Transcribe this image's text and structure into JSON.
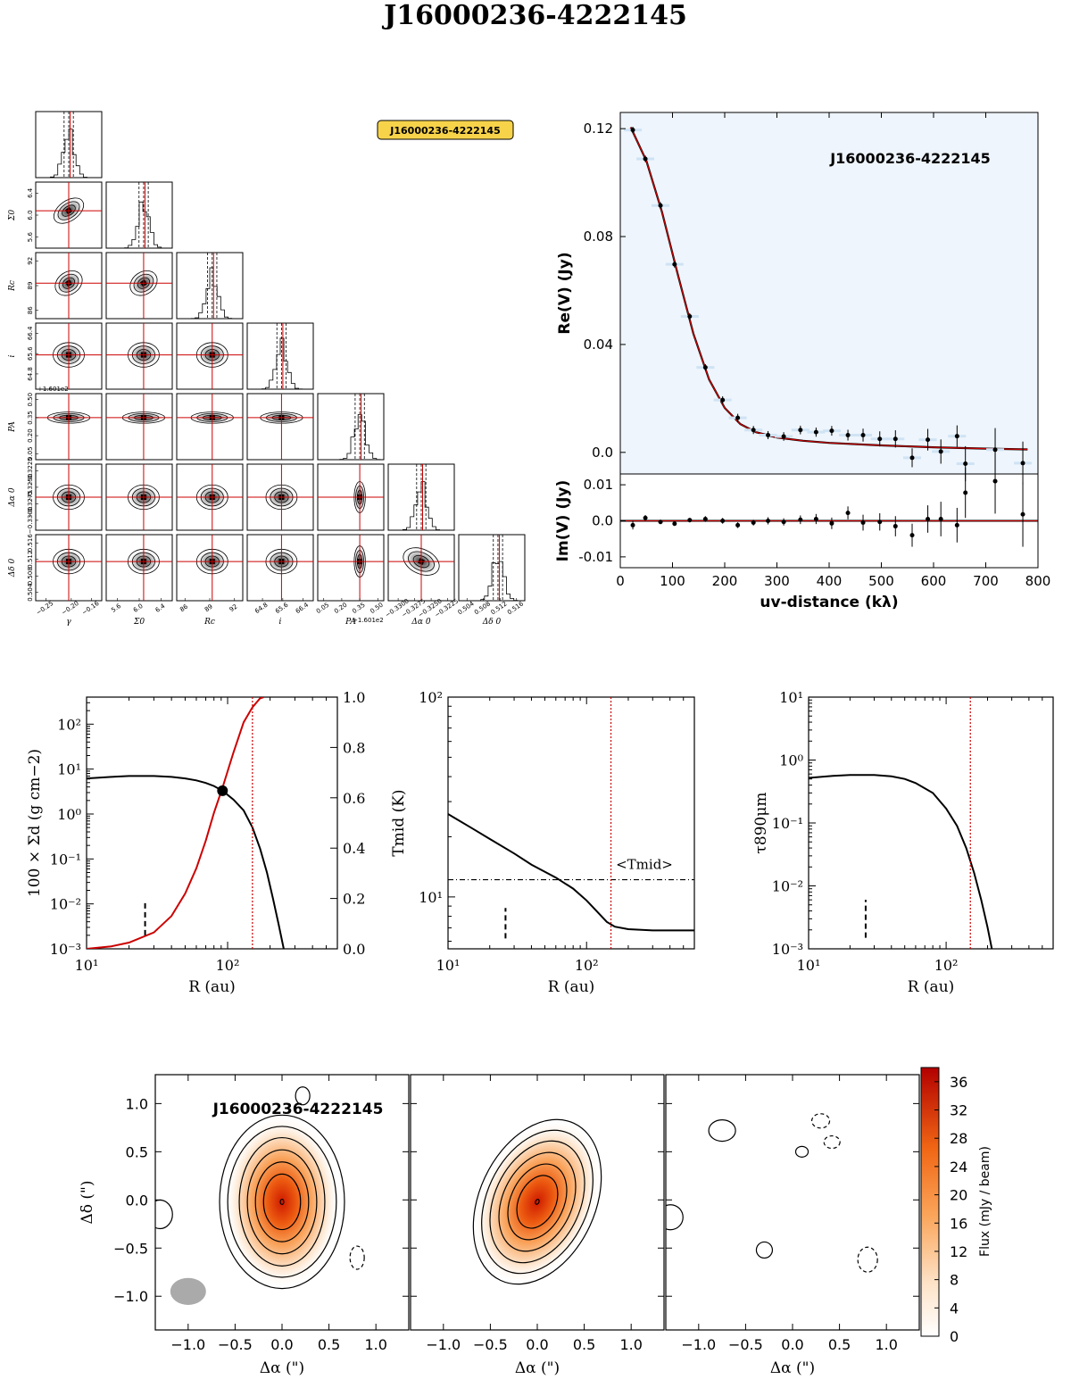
{
  "title": "J16000236-4222145",
  "colors": {
    "model_red": "#cc0000",
    "uv_bg": "#eef5fc",
    "badge_fill": "#f7d34a",
    "beam": "#aaaaaa",
    "cmap_low": "#ffffff",
    "cmap_high": "#b30000"
  },
  "chart_data": [
    {
      "type": "corner",
      "badge": "J16000236-4222145",
      "parameters": [
        "γ",
        "Σ0",
        "Rc",
        "i",
        "PA",
        "Δα 0",
        "Δδ 0"
      ],
      "ylabels": [
        "Σ0",
        "Rc",
        "i",
        "PA",
        "Δα 0",
        "Δδ 0"
      ],
      "xlabels": [
        "γ",
        "Σ0",
        "Rc",
        "i",
        "PA",
        "Δα 0",
        "Δδ 0"
      ],
      "offsets": {
        "i": "+1.601e2",
        "PA": "+1.601e2"
      },
      "ticks": {
        "γ": [
          "−0.25",
          "−0.20",
          "−0.16"
        ],
        "Σ0": [
          "5.6",
          "6.0",
          "6.4"
        ],
        "Rc": [
          "86",
          "89",
          "92"
        ],
        "i": [
          "64.8",
          "65.6",
          "66.4"
        ],
        "PA": [
          "0.05",
          "0.20",
          "0.35",
          "0.50"
        ],
        "Δα 0": [
          "−0.3300",
          "−0.3275",
          "−0.3250",
          "−0.3225"
        ],
        "Δδ 0": [
          "0.504",
          "0.508",
          "0.512",
          "0.516"
        ]
      },
      "ytick_labels": {
        "Σ0": [
          "5.6",
          "6.0",
          "6.4"
        ],
        "Rc": [
          "86",
          "89",
          "92"
        ],
        "i": [
          "64.8",
          "65.6",
          "66.4"
        ],
        "PA": [
          "0.05",
          "0.20",
          "0.35",
          "0.50"
        ],
        "Δα 0": [
          "−0.3300",
          "−0.3275",
          "−0.3250",
          "−0.3225"
        ],
        "Δδ 0": [
          "0.504",
          "0.508",
          "0.512",
          "0.516"
        ]
      },
      "xtick_labels": {
        "γ": [
          "−0.25",
          "−0.20",
          "−0.16"
        ],
        "Σ0": [
          "5.6",
          "6.0",
          "6.4"
        ],
        "Rc": [
          "86",
          "89",
          "92"
        ],
        "i": [
          "64.8",
          "65.6",
          "66.4"
        ],
        "PA": [
          "0.05",
          "0.20",
          "0.35",
          "0.50"
        ],
        "Δα 0": [
          "−0.3300",
          "−0.3275",
          "−0.3250",
          "−0.3225"
        ],
        "Δδ 0": [
          "0.504",
          "0.508",
          "0.512",
          "0.516"
        ]
      },
      "tick_values": {
        "γ": [
          -0.25,
          -0.2,
          -0.16
        ],
        "Σ0": [
          5.6,
          6.0,
          6.4
        ],
        "Rc": [
          86,
          89,
          92
        ],
        "i": [
          64.8,
          65.6,
          66.4
        ],
        "PA": [
          0.05,
          0.2,
          0.35,
          0.5
        ],
        "Δα 0": [
          -0.33,
          -0.3275,
          -0.325,
          -0.3225
        ],
        "Δδ 0": [
          0.504,
          0.508,
          0.512,
          0.516
        ]
      },
      "ranges": {
        "γ": [
          -0.27,
          -0.14
        ],
        "Σ0": [
          5.4,
          6.6
        ],
        "Rc": [
          85,
          93
        ],
        "i": [
          64.2,
          66.8
        ],
        "PA": [
          0.0,
          0.55
        ],
        "Δα 0": [
          -0.3315,
          -0.3215
        ],
        "Δδ 0": [
          0.502,
          0.518
        ]
      },
      "best_fit": {
        "γ": -0.205,
        "Σ0": 6.08,
        "Rc": 89.3,
        "i": 65.55,
        "PA": 0.35,
        "Δα 0": -0.3265,
        "Δδ 0": 0.5115
      }
    },
    {
      "type": "scatter",
      "title": "J16000236-4222145",
      "xlabel": "uv-distance (kλ)",
      "ylabel_top": "Re(V) (Jy)",
      "ylabel_bottom": "Im(V) (Jy)",
      "xlim": [
        0,
        800
      ],
      "xticks": [
        "0",
        "100",
        "200",
        "300",
        "400",
        "500",
        "600",
        "700",
        "800"
      ],
      "ylim_top": [
        -0.008,
        0.126
      ],
      "yticks_top": [
        "0.0",
        "0.04",
        "0.08",
        "0.12"
      ],
      "ylim_bottom": [
        -0.013,
        0.013
      ],
      "yticks_bottom": [
        "-0.01",
        "0.0",
        "0.01"
      ],
      "re_points": [
        {
          "x": 24,
          "y": 0.1195,
          "err": 0.0012
        },
        {
          "x": 48,
          "y": 0.1088,
          "err": 0.0012
        },
        {
          "x": 77,
          "y": 0.0915,
          "err": 0.0012
        },
        {
          "x": 104,
          "y": 0.0697,
          "err": 0.0012
        },
        {
          "x": 133,
          "y": 0.0504,
          "err": 0.0012
        },
        {
          "x": 163,
          "y": 0.0315,
          "err": 0.0012
        },
        {
          "x": 196,
          "y": 0.0194,
          "err": 0.0014
        },
        {
          "x": 225,
          "y": 0.0128,
          "err": 0.0015
        },
        {
          "x": 255,
          "y": 0.0083,
          "err": 0.0015
        },
        {
          "x": 283,
          "y": 0.0064,
          "err": 0.0015
        },
        {
          "x": 313,
          "y": 0.0059,
          "err": 0.0016
        },
        {
          "x": 345,
          "y": 0.0083,
          "err": 0.0016
        },
        {
          "x": 375,
          "y": 0.0075,
          "err": 0.0017
        },
        {
          "x": 405,
          "y": 0.008,
          "err": 0.0018
        },
        {
          "x": 436,
          "y": 0.0064,
          "err": 0.002
        },
        {
          "x": 465,
          "y": 0.0064,
          "err": 0.0024
        },
        {
          "x": 497,
          "y": 0.005,
          "err": 0.0028
        },
        {
          "x": 527,
          "y": 0.005,
          "err": 0.0032
        },
        {
          "x": 559,
          "y": -0.002,
          "err": 0.0035
        },
        {
          "x": 589,
          "y": 0.0047,
          "err": 0.004
        },
        {
          "x": 614,
          "y": 0.0003,
          "err": 0.0045
        },
        {
          "x": 645,
          "y": 0.006,
          "err": 0.004
        },
        {
          "x": 661,
          "y": -0.0042,
          "err": 0.0065
        },
        {
          "x": 718,
          "y": 0.001,
          "err": 0.008
        },
        {
          "x": 771,
          "y": -0.004,
          "err": 0.008
        }
      ],
      "im_points": [
        {
          "x": 24,
          "y": -0.0012,
          "err": 0.0012
        },
        {
          "x": 48,
          "y": 0.0008,
          "err": 0.0008
        },
        {
          "x": 77,
          "y": -0.0003,
          "err": 0.0006
        },
        {
          "x": 104,
          "y": -0.0008,
          "err": 0.0006
        },
        {
          "x": 133,
          "y": 0.0002,
          "err": 0.0006
        },
        {
          "x": 163,
          "y": 0.0005,
          "err": 0.0008
        },
        {
          "x": 196,
          "y": 0.0,
          "err": 0.0008
        },
        {
          "x": 225,
          "y": -0.0012,
          "err": 0.0008
        },
        {
          "x": 255,
          "y": -0.0005,
          "err": 0.0008
        },
        {
          "x": 283,
          "y": 0.0,
          "err": 0.001
        },
        {
          "x": 313,
          "y": -0.0003,
          "err": 0.001
        },
        {
          "x": 345,
          "y": 0.0003,
          "err": 0.0012
        },
        {
          "x": 375,
          "y": 0.0005,
          "err": 0.0014
        },
        {
          "x": 405,
          "y": -0.0007,
          "err": 0.0016
        },
        {
          "x": 436,
          "y": 0.0022,
          "err": 0.0018
        },
        {
          "x": 465,
          "y": -0.0005,
          "err": 0.0022
        },
        {
          "x": 497,
          "y": -0.0003,
          "err": 0.0024
        },
        {
          "x": 527,
          "y": -0.0015,
          "err": 0.0028
        },
        {
          "x": 559,
          "y": -0.004,
          "err": 0.0032
        },
        {
          "x": 589,
          "y": 0.0005,
          "err": 0.0038
        },
        {
          "x": 614,
          "y": 0.0005,
          "err": 0.0048
        },
        {
          "x": 645,
          "y": -0.0012,
          "err": 0.0048
        },
        {
          "x": 661,
          "y": 0.0078,
          "err": 0.007
        },
        {
          "x": 718,
          "y": 0.011,
          "err": 0.009
        },
        {
          "x": 771,
          "y": 0.0018,
          "err": 0.009
        }
      ],
      "model_re": [
        {
          "x": 20,
          "y": 0.1205
        },
        {
          "x": 50,
          "y": 0.108
        },
        {
          "x": 80,
          "y": 0.089
        },
        {
          "x": 110,
          "y": 0.066
        },
        {
          "x": 140,
          "y": 0.044
        },
        {
          "x": 170,
          "y": 0.027
        },
        {
          "x": 200,
          "y": 0.0165
        },
        {
          "x": 230,
          "y": 0.0105
        },
        {
          "x": 260,
          "y": 0.0075
        },
        {
          "x": 300,
          "y": 0.0055
        },
        {
          "x": 350,
          "y": 0.0043
        },
        {
          "x": 400,
          "y": 0.0035
        },
        {
          "x": 500,
          "y": 0.0026
        },
        {
          "x": 600,
          "y": 0.0019
        },
        {
          "x": 700,
          "y": 0.0014
        },
        {
          "x": 780,
          "y": 0.0011
        }
      ]
    },
    {
      "type": "line",
      "xlabel": "R (au)",
      "ylabel_left": "100 × Σd (g cm−2)",
      "xscale": "log",
      "yscale_left": "log",
      "xlim": [
        10,
        600
      ],
      "ylim_left": [
        0.001,
        400
      ],
      "ylim_right": [
        0,
        1
      ],
      "xticks": [
        "10¹",
        "10²"
      ],
      "yticks_left": [
        "10⁻³",
        "10⁻²",
        "10⁻¹",
        "10⁰",
        "10¹",
        "10²"
      ],
      "yticks_right": [
        "0.0",
        "0.2",
        "0.4",
        "0.6",
        "0.8",
        "1.0"
      ],
      "series": [
        {
          "color": "#000000",
          "points": [
            [
              10,
              6.2
            ],
            [
              15,
              6.7
            ],
            [
              20,
              7.0
            ],
            [
              30,
              7.0
            ],
            [
              40,
              6.7
            ],
            [
              50,
              6.2
            ],
            [
              60,
              5.6
            ],
            [
              70,
              4.9
            ],
            [
              80,
              4.2
            ],
            [
              92,
              3.3
            ],
            [
              110,
              2.1
            ],
            [
              130,
              1.2
            ],
            [
              150,
              0.5
            ],
            [
              170,
              0.17
            ],
            [
              190,
              0.05
            ],
            [
              210,
              0.013
            ],
            [
              230,
              0.0035
            ],
            [
              250,
              0.001
            ]
          ]
        },
        {
          "color": "#cc0000",
          "axis": "right",
          "points": [
            [
              10,
              0.0
            ],
            [
              15,
              0.01
            ],
            [
              20,
              0.025
            ],
            [
              30,
              0.065
            ],
            [
              40,
              0.13
            ],
            [
              50,
              0.22
            ],
            [
              60,
              0.32
            ],
            [
              70,
              0.43
            ],
            [
              80,
              0.54
            ],
            [
              92,
              0.64
            ],
            [
              110,
              0.78
            ],
            [
              130,
              0.9
            ],
            [
              150,
              0.96
            ],
            [
              170,
              0.995
            ],
            [
              180,
              1.0
            ]
          ]
        }
      ],
      "marker": {
        "x": 92,
        "y": 3.3
      },
      "vline_red": 150,
      "dashed_marker": {
        "x": 26,
        "y_from": 0.002,
        "y_to": 0.012
      }
    },
    {
      "type": "line",
      "xlabel": "R (au)",
      "ylabel": "Tmid (K)",
      "xscale": "log",
      "yscale": "log",
      "xlim": [
        10,
        600
      ],
      "ylim": [
        5.5,
        100
      ],
      "xticks": [
        "10¹",
        "10²"
      ],
      "yticks": [
        "10¹",
        "10²"
      ],
      "series": [
        {
          "color": "#000000",
          "points": [
            [
              10,
              26
            ],
            [
              15,
              22
            ],
            [
              20,
              19.5
            ],
            [
              30,
              16.5
            ],
            [
              40,
              14.5
            ],
            [
              60,
              12.5
            ],
            [
              80,
              11
            ],
            [
              100,
              9.6
            ],
            [
              120,
              8.4
            ],
            [
              140,
              7.5
            ],
            [
              160,
              7.1
            ],
            [
              200,
              6.9
            ],
            [
              300,
              6.8
            ],
            [
              600,
              6.8
            ]
          ]
        }
      ],
      "hline": 12.2,
      "hline_label": "<Tmid>",
      "vline_red": 150,
      "dashed_marker": {
        "x": 26,
        "y_from": 6.2,
        "y_to": 8.8
      }
    },
    {
      "type": "line",
      "xlabel": "R (au)",
      "ylabel": "τ890μm",
      "xscale": "log",
      "yscale": "log",
      "xlim": [
        10,
        600
      ],
      "ylim": [
        0.001,
        10
      ],
      "xticks": [
        "10¹",
        "10²"
      ],
      "yticks": [
        "10⁻³",
        "10⁻²",
        "10⁻¹",
        "10⁰",
        "10¹"
      ],
      "series": [
        {
          "color": "#000000",
          "points": [
            [
              10,
              0.52
            ],
            [
              15,
              0.56
            ],
            [
              20,
              0.58
            ],
            [
              30,
              0.58
            ],
            [
              40,
              0.55
            ],
            [
              50,
              0.5
            ],
            [
              60,
              0.43
            ],
            [
              80,
              0.3
            ],
            [
              100,
              0.17
            ],
            [
              120,
              0.09
            ],
            [
              140,
              0.04
            ],
            [
              160,
              0.016
            ],
            [
              180,
              0.006
            ],
            [
              200,
              0.0022
            ],
            [
              215,
              0.001
            ]
          ]
        }
      ],
      "vline_red": 150,
      "dashed_marker": {
        "x": 26,
        "y_from": 0.0015,
        "y_to": 0.006
      }
    },
    {
      "type": "heatmap",
      "panel_label": "J16000236-4222145",
      "xlabel": "Δα (\")",
      "ylabel": "Δδ (\")",
      "xlim": [
        -1.35,
        1.35
      ],
      "ylim": [
        -1.35,
        1.3
      ],
      "xticks": [
        "−1.0",
        "−0.5",
        "0.0",
        "0.5",
        "1.0"
      ],
      "yticks": [
        "1.0",
        "0.5",
        "0.0",
        "−0.5",
        "−1.0"
      ],
      "colorbar_label": "Flux (mJy / beam)",
      "colorbar_ticks": [
        "0",
        "4",
        "8",
        "12",
        "16",
        "20",
        "24",
        "28",
        "32",
        "36"
      ],
      "colorbar_range": [
        0,
        38
      ],
      "peak_flux": 37,
      "source": {
        "x": 0.0,
        "y": -0.02,
        "sigma_x": 0.28,
        "sigma_y": 0.45,
        "pa_deg": 0
      },
      "model_pa_deg": 25,
      "beam": {
        "x": -1.0,
        "y": -0.95,
        "major": 0.38,
        "minor": 0.28
      }
    }
  ]
}
